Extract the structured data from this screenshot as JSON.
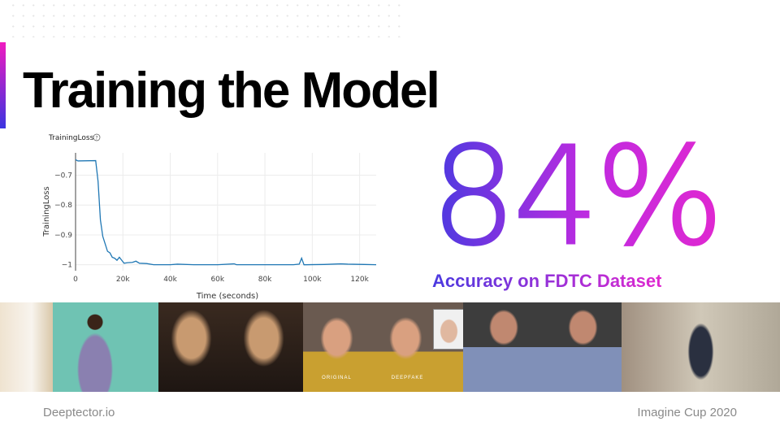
{
  "slide": {
    "title": "Training the Model",
    "big_number": "84%",
    "caption": "Accuracy on FDTC Dataset",
    "footer_left": "Deeptector.io",
    "footer_right": "Imagine Cup 2020",
    "accent_start": "#3b34e0",
    "accent_end": "#f01bc0"
  },
  "photos": {
    "original_label": "ORIGINAL",
    "deepfake_label": "DEEPFAKE"
  },
  "chart_data": {
    "type": "line",
    "title": "TrainingLoss",
    "help_icon": "question-circle-icon",
    "xlabel": "Time (seconds)",
    "ylabel": "TrainingLoss",
    "xlim": [
      0,
      127000
    ],
    "ylim": [
      -1.02,
      -0.625
    ],
    "grid": true,
    "line_color": "#1f77b4",
    "xticks": [
      {
        "v": 0,
        "l": "0"
      },
      {
        "v": 20000,
        "l": "20k"
      },
      {
        "v": 40000,
        "l": "40k"
      },
      {
        "v": 60000,
        "l": "60k"
      },
      {
        "v": 80000,
        "l": "80k"
      },
      {
        "v": 100000,
        "l": "100k"
      },
      {
        "v": 120000,
        "l": "120k"
      }
    ],
    "yticks": [
      {
        "v": -0.7,
        "l": "−0.7"
      },
      {
        "v": -0.8,
        "l": "−0.8"
      },
      {
        "v": -0.9,
        "l": "−0.9"
      },
      {
        "v": -1,
        "l": "−1"
      }
    ],
    "x": [
      0,
      1000,
      8500,
      9500,
      10500,
      11500,
      12500,
      13500,
      14500,
      15500,
      16500,
      17500,
      18500,
      19500,
      20500,
      22000,
      24000,
      25500,
      27000,
      30000,
      33000,
      40000,
      43000,
      50000,
      60000,
      67000,
      68000,
      80000,
      92000,
      94500,
      95500,
      96500,
      105000,
      112000,
      115000,
      122000,
      127000
    ],
    "y": [
      -0.648,
      -0.652,
      -0.651,
      -0.72,
      -0.85,
      -0.905,
      -0.93,
      -0.955,
      -0.96,
      -0.975,
      -0.978,
      -0.985,
      -0.975,
      -0.985,
      -0.995,
      -0.993,
      -0.992,
      -0.988,
      -0.995,
      -0.996,
      -1.0,
      -1.0,
      -0.998,
      -1.0,
      -1.0,
      -0.997,
      -1.0,
      -1.0,
      -1.0,
      -0.998,
      -0.978,
      -1.0,
      -0.999,
      -0.997,
      -0.998,
      -0.999,
      -1.0
    ]
  }
}
